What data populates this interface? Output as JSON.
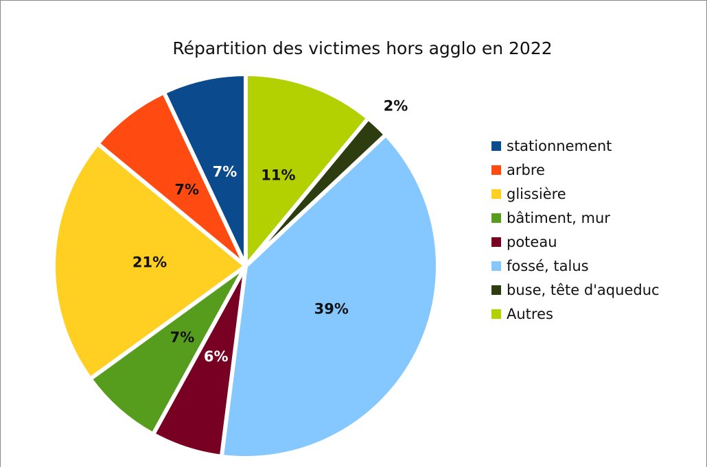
{
  "chart_data": {
    "type": "pie",
    "title": "Répartition des victimes hors agglo en 2022",
    "categories": [
      "stationnement",
      "arbre",
      "glissière",
      "bâtiment, mur",
      "poteau",
      "fossé, talus",
      "buse, tête d'aqueduc",
      "Autres"
    ],
    "values": [
      7,
      7,
      21,
      7,
      6,
      39,
      2,
      11
    ],
    "value_labels": [
      "7%",
      "7%",
      "21%",
      "7%",
      "6%",
      "39%",
      "2%",
      "11%"
    ],
    "colors": [
      "#0b4a8c",
      "#ff4a12",
      "#ffcf21",
      "#569d1e",
      "#780022",
      "#85c8ff",
      "#2d3d10",
      "#b3d000"
    ],
    "legend": "right"
  }
}
